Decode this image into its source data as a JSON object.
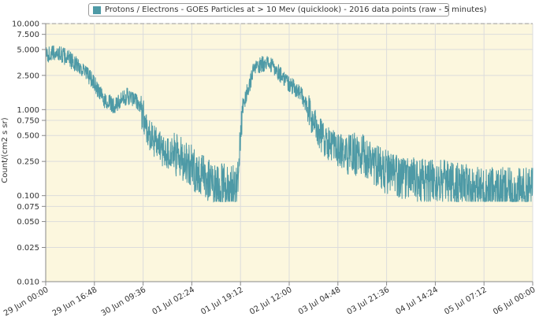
{
  "colors": {
    "series": "#4e9aa6",
    "plot_bg": "#fcf7de",
    "grid": "#dcdcdc",
    "axis": "#888888"
  },
  "chart_data": {
    "type": "line",
    "title": "Protons / Electrons - GOES Particles at > 10 Mev (quicklook) - 2016 data points (raw - 5 minutes)",
    "ylabel": "Count/(cm2 s sr)",
    "xlabel": "",
    "y_scale": "log",
    "ylim": [
      0.01,
      10
    ],
    "xlim": [
      "2016-06-29 00:00",
      "2016-07-06 00:00"
    ],
    "grid": true,
    "y_ticks": [
      {
        "value": 10,
        "label": "10.000"
      },
      {
        "value": 7.5,
        "label": "7.500"
      },
      {
        "value": 5,
        "label": "5.000"
      },
      {
        "value": 2.5,
        "label": "2.500"
      },
      {
        "value": 1,
        "label": "1.000"
      },
      {
        "value": 0.75,
        "label": "0.750"
      },
      {
        "value": 0.5,
        "label": "0.500"
      },
      {
        "value": 0.25,
        "label": "0.250"
      },
      {
        "value": 0.1,
        "label": "0.100"
      },
      {
        "value": 0.075,
        "label": "0.075"
      },
      {
        "value": 0.05,
        "label": "0.050"
      },
      {
        "value": 0.025,
        "label": "0.025"
      },
      {
        "value": 0.01,
        "label": "0.010"
      }
    ],
    "x_ticks": [
      {
        "value": "2016-06-29 00:00",
        "label": "29 Jun 00:00"
      },
      {
        "value": "2016-06-29 16:48",
        "label": "29 Jun 16:48"
      },
      {
        "value": "2016-06-30 09:36",
        "label": "30 Jun 09:36"
      },
      {
        "value": "2016-07-01 02:24",
        "label": "01 Jul 02:24"
      },
      {
        "value": "2016-07-01 19:12",
        "label": "01 Jul 19:12"
      },
      {
        "value": "2016-07-02 12:00",
        "label": "02 Jul 12:00"
      },
      {
        "value": "2016-07-03 04:48",
        "label": "03 Jul 04:48"
      },
      {
        "value": "2016-07-03 21:36",
        "label": "03 Jul 21:36"
      },
      {
        "value": "2016-07-04 14:24",
        "label": "04 Jul 14:24"
      },
      {
        "value": "2016-07-05 07:12",
        "label": "05 Jul 07:12"
      },
      {
        "value": "2016-07-06 00:00",
        "label": "06 Jul 00:00"
      }
    ],
    "series": [
      {
        "name": "Protons / Electrons - GOES Particles at > 10 Mev (quicklook) - 2016 data points (raw - 5 minutes)",
        "x": [
          "2016-06-29 00:00",
          "2016-06-29 04:00",
          "2016-06-29 08:00",
          "2016-06-29 12:00",
          "2016-06-29 16:00",
          "2016-06-29 20:00",
          "2016-06-30 00:00",
          "2016-06-30 04:00",
          "2016-06-30 08:00",
          "2016-06-30 12:00",
          "2016-06-30 16:00",
          "2016-06-30 20:00",
          "2016-07-01 00:00",
          "2016-07-01 04:00",
          "2016-07-01 08:00",
          "2016-07-01 12:00",
          "2016-07-01 16:00",
          "2016-07-01 18:00",
          "2016-07-01 20:00",
          "2016-07-02 00:00",
          "2016-07-02 04:00",
          "2016-07-02 08:00",
          "2016-07-02 12:00",
          "2016-07-02 16:00",
          "2016-07-02 20:00",
          "2016-07-03 00:00",
          "2016-07-03 04:00",
          "2016-07-03 08:00",
          "2016-07-03 12:00",
          "2016-07-03 16:00",
          "2016-07-03 20:00",
          "2016-07-04 00:00",
          "2016-07-04 06:00",
          "2016-07-04 12:00",
          "2016-07-04 18:00",
          "2016-07-05 00:00",
          "2016-07-05 06:00",
          "2016-07-05 12:00",
          "2016-07-05 18:00",
          "2016-07-06 00:00"
        ],
        "values": [
          4.3,
          4.6,
          3.9,
          3.1,
          2.2,
          1.3,
          1.1,
          1.45,
          1.2,
          0.5,
          0.34,
          0.3,
          0.26,
          0.19,
          0.15,
          0.13,
          0.13,
          0.13,
          1.1,
          3.0,
          3.6,
          2.8,
          2.0,
          1.55,
          0.75,
          0.45,
          0.35,
          0.3,
          0.3,
          0.26,
          0.2,
          0.17,
          0.155,
          0.145,
          0.145,
          0.13,
          0.12,
          0.12,
          0.115,
          0.12
        ]
      }
    ]
  }
}
